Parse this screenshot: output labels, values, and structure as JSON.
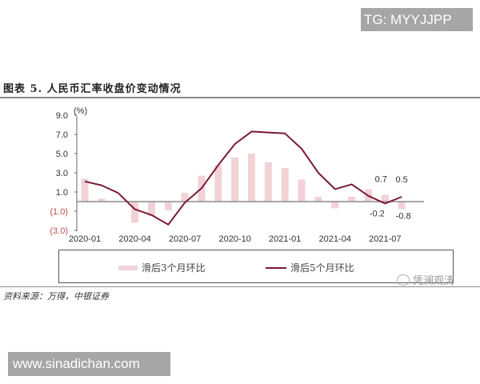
{
  "watermarks": {
    "top_right": "TG: MYYJJPP",
    "bottom_left": "www.sinadichan.com",
    "wechat_account": "凭澜观涛"
  },
  "figure": {
    "title": "图表 5. 人民币汇率收盘价变动情况",
    "source": "资料来源：万得，中银证券"
  },
  "legend": {
    "bar_label": "滑后3个月环比",
    "line_label": "滑后5个月环比"
  },
  "colors": {
    "bar": "#f2d2d7",
    "line": "#7b1a36",
    "zero_line": "#8c8c8c",
    "negative_tick": "#c0504d"
  },
  "chart_data": {
    "type": "bar+line",
    "title": "人民币汇率收盘价变动情况",
    "ylabel": "(%)",
    "xlabel": "",
    "ylim": [
      -3.0,
      9.0
    ],
    "yticks": [
      "9.0",
      "7.0",
      "5.0",
      "3.0",
      "1.0",
      "(1.0)",
      "(3.0)"
    ],
    "ytick_values": [
      9.0,
      7.0,
      5.0,
      3.0,
      1.0,
      -1.0,
      -3.0
    ],
    "xtick_labels": [
      "2020-01",
      "2020-04",
      "2020-07",
      "2020-10",
      "2021-01",
      "2021-04",
      "2021-07"
    ],
    "categories": [
      "2020-01",
      "2020-02",
      "2020-03",
      "2020-04",
      "2020-05",
      "2020-06",
      "2020-07",
      "2020-08",
      "2020-09",
      "2020-10",
      "2020-11",
      "2020-12",
      "2021-01",
      "2021-02",
      "2021-03",
      "2021-04",
      "2021-05",
      "2021-06",
      "2021-07",
      "2021-08"
    ],
    "series": [
      {
        "name": "滑后3个月环比",
        "type": "bar",
        "values": [
          2.4,
          0.3,
          0.0,
          -2.2,
          -1.5,
          -0.9,
          0.9,
          2.7,
          3.8,
          4.6,
          5.0,
          4.1,
          3.5,
          2.3,
          0.5,
          -0.7,
          0.5,
          1.3,
          0.7,
          -0.8
        ]
      },
      {
        "name": "滑后5个月环比",
        "type": "line",
        "values": [
          2.1,
          1.7,
          0.9,
          -0.8,
          -1.4,
          -2.4,
          -0.1,
          1.4,
          3.8,
          6.0,
          7.3,
          7.2,
          7.1,
          5.5,
          3.0,
          1.3,
          1.8,
          0.6,
          -0.2,
          0.5
        ]
      }
    ],
    "annotations": [
      {
        "text": "0.7",
        "category": "2021-07",
        "series": "滑后3个月环比"
      },
      {
        "text": "0.5",
        "category": "2021-08",
        "series": "滑后5个月环比"
      },
      {
        "text": "-0.2",
        "category": "2021-07",
        "series": "滑后5个月环比"
      },
      {
        "text": "-0.8",
        "category": "2021-08",
        "series": "滑后3个月环比"
      }
    ],
    "grid": false,
    "legend_position": "bottom"
  }
}
